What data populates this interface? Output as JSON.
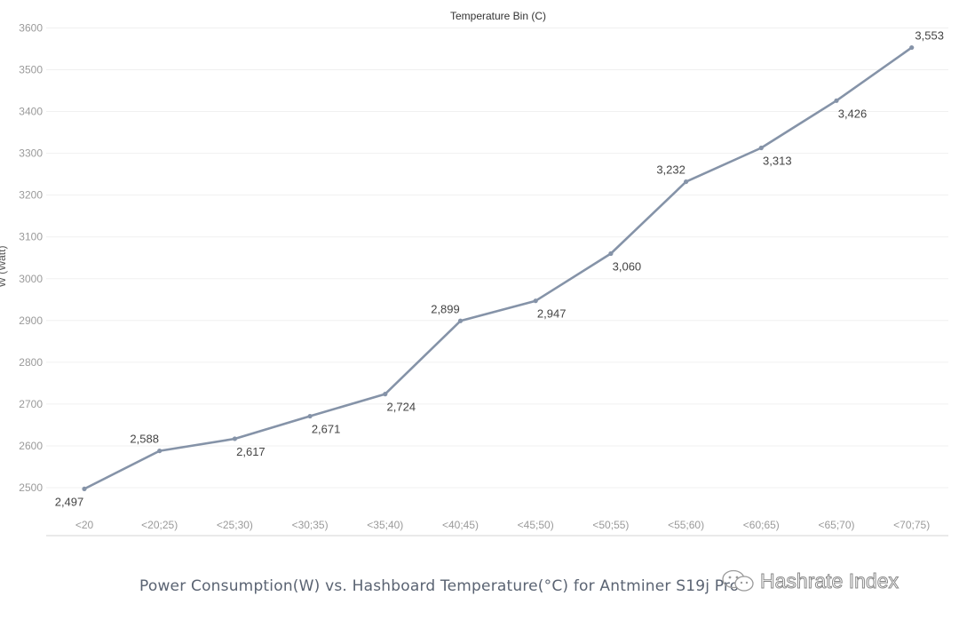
{
  "chart_data": {
    "type": "line",
    "title": "Temperature Bin (C)",
    "xlabel": "Temperature Bin (C)",
    "ylabel": "W (Watt)",
    "categories": [
      "<20",
      "<20;25)",
      "<25;30)",
      "<30;35)",
      "<35;40)",
      "<40;45)",
      "<45;50)",
      "<50;55)",
      "<55;60)",
      "<60;65)",
      "<65;70)",
      "<70;75)"
    ],
    "series": [
      {
        "values": [
          2497,
          2588,
          2617,
          2671,
          2724,
          2899,
          2947,
          3060,
          3232,
          3313,
          3426,
          3553
        ],
        "color": "#8593a8"
      }
    ],
    "data_labels": [
      "2,497",
      "2,588",
      "2,617",
      "2,671",
      "2,724",
      "2,899",
      "2,947",
      "3,060",
      "3,232",
      "3,313",
      "3,426",
      "3,553"
    ],
    "label_positions": [
      "below",
      "above",
      "below",
      "below",
      "below",
      "above",
      "below",
      "below",
      "above",
      "below",
      "below",
      "above"
    ],
    "y_ticks": [
      2500,
      2600,
      2700,
      2800,
      2900,
      3000,
      3100,
      3200,
      3300,
      3400,
      3500,
      3600
    ],
    "ylim": [
      2500,
      3600
    ],
    "grid": true,
    "legend": "none"
  },
  "caption": "Power Consumption(W) vs. Hashboard Temperature(°C) for Antminer S19j Pro",
  "watermark": "Hashrate Index",
  "colors": {
    "line": "#8593a8",
    "grid": "#f0f0f0",
    "axis_text": "#9a9a9a",
    "caption": "#5a6372"
  }
}
